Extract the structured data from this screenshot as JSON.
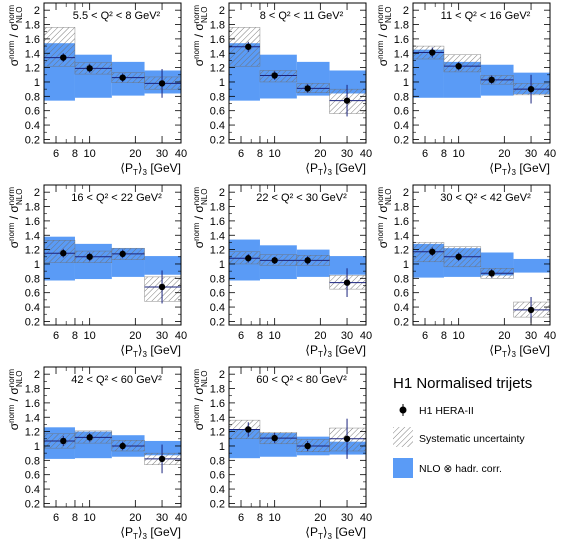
{
  "figure": {
    "y_axis_label": "σ norm / σ norm NLO",
    "legend": {
      "title": "H1 Normalised trijets",
      "entries": [
        {
          "label": "H1 HERA-II",
          "kind": "data-point"
        },
        {
          "label": "Systematic uncertainty",
          "kind": "hatched-box"
        },
        {
          "label": "NLO ⊗ hadr. corr.",
          "kind": "filled-box"
        }
      ]
    },
    "colors": {
      "nlo_band": "#5a9bf6",
      "hatch": "#6f6f6f",
      "data": "#000000",
      "error_bar": "#1a237e"
    }
  },
  "chart_data": [
    {
      "type": "scatter",
      "panel": "5.5 < Q² < 8 GeV²",
      "x_label": "⟨P_T⟩_3 [GeV]",
      "x_scale": "log",
      "xlim": [
        5,
        40
      ],
      "ylim": [
        0.15,
        2.1
      ],
      "x_ticks": [
        6,
        8,
        10,
        20,
        30,
        40
      ],
      "y_ticks": [
        0.2,
        0.4,
        0.6,
        0.8,
        1,
        1.2,
        1.4,
        1.6,
        1.8,
        2
      ],
      "bins": [
        {
          "lo": 5,
          "hi": 8,
          "x": 6.7,
          "y": 1.34,
          "stat": 0.06,
          "sys_lo": 1.22,
          "sys_hi": 1.76,
          "nlo_lo": 0.74,
          "nlo_hi": 1.54
        },
        {
          "lo": 8,
          "hi": 14,
          "x": 10.0,
          "y": 1.19,
          "stat": 0.06,
          "sys_lo": 1.11,
          "sys_hi": 1.27,
          "nlo_lo": 0.78,
          "nlo_hi": 1.38
        },
        {
          "lo": 14,
          "hi": 23,
          "x": 16.5,
          "y": 1.06,
          "stat": 0.06,
          "sys_lo": 0.99,
          "sys_hi": 1.13,
          "nlo_lo": 0.81,
          "nlo_hi": 1.28
        },
        {
          "lo": 23,
          "hi": 40,
          "x": 30.0,
          "y": 0.98,
          "stat": 0.2,
          "sys_lo": 0.9,
          "sys_hi": 1.07,
          "nlo_lo": 0.84,
          "nlo_hi": 1.16
        }
      ]
    },
    {
      "type": "scatter",
      "panel": "8 < Q² < 11 GeV²",
      "x_label": "⟨P_T⟩_3 [GeV]",
      "x_scale": "log",
      "xlim": [
        5,
        40
      ],
      "ylim": [
        0.15,
        2.1
      ],
      "x_ticks": [
        6,
        8,
        10,
        20,
        30,
        40
      ],
      "y_ticks": [
        0.2,
        0.4,
        0.6,
        0.8,
        1,
        1.2,
        1.4,
        1.6,
        1.8,
        2
      ],
      "bins": [
        {
          "lo": 5,
          "hi": 8,
          "x": 6.7,
          "y": 1.49,
          "stat": 0.07,
          "sys_lo": 1.22,
          "sys_hi": 1.76,
          "nlo_lo": 0.74,
          "nlo_hi": 1.54
        },
        {
          "lo": 8,
          "hi": 14,
          "x": 10.0,
          "y": 1.09,
          "stat": 0.06,
          "sys_lo": 1.0,
          "sys_hi": 1.16,
          "nlo_lo": 0.77,
          "nlo_hi": 1.38
        },
        {
          "lo": 14,
          "hi": 23,
          "x": 16.5,
          "y": 0.91,
          "stat": 0.06,
          "sys_lo": 0.85,
          "sys_hi": 0.98,
          "nlo_lo": 0.81,
          "nlo_hi": 1.28
        },
        {
          "lo": 23,
          "hi": 40,
          "x": 30.0,
          "y": 0.74,
          "stat": 0.22,
          "sys_lo": 0.56,
          "sys_hi": 0.9,
          "nlo_lo": 0.84,
          "nlo_hi": 1.16
        }
      ]
    },
    {
      "type": "scatter",
      "panel": "11 < Q² < 16 GeV²",
      "x_label": "⟨P_T⟩_3 [GeV]",
      "x_scale": "log",
      "xlim": [
        5,
        40
      ],
      "ylim": [
        0.15,
        2.1
      ],
      "x_ticks": [
        6,
        8,
        10,
        20,
        30,
        40
      ],
      "y_ticks": [
        0.2,
        0.4,
        0.6,
        0.8,
        1,
        1.2,
        1.4,
        1.6,
        1.8,
        2
      ],
      "bins": [
        {
          "lo": 5,
          "hi": 8,
          "x": 6.7,
          "y": 1.41,
          "stat": 0.07,
          "sys_lo": 1.32,
          "sys_hi": 1.5,
          "nlo_lo": 0.78,
          "nlo_hi": 1.45
        },
        {
          "lo": 8,
          "hi": 14,
          "x": 10.0,
          "y": 1.22,
          "stat": 0.06,
          "sys_lo": 1.14,
          "sys_hi": 1.38,
          "nlo_lo": 0.78,
          "nlo_hi": 1.28
        },
        {
          "lo": 14,
          "hi": 23,
          "x": 16.5,
          "y": 1.03,
          "stat": 0.06,
          "sys_lo": 0.97,
          "sys_hi": 1.09,
          "nlo_lo": 0.81,
          "nlo_hi": 1.24
        },
        {
          "lo": 23,
          "hi": 40,
          "x": 30.0,
          "y": 0.9,
          "stat": 0.2,
          "sys_lo": 0.82,
          "sys_hi": 0.98,
          "nlo_lo": 0.83,
          "nlo_hi": 1.13
        }
      ]
    },
    {
      "type": "scatter",
      "panel": "16 < Q² < 22 GeV²",
      "x_label": "⟨P_T⟩_3 [GeV]",
      "x_scale": "log",
      "xlim": [
        5,
        40
      ],
      "ylim": [
        0.15,
        2.1
      ],
      "x_ticks": [
        6,
        8,
        10,
        20,
        30,
        40
      ],
      "y_ticks": [
        0.2,
        0.4,
        0.6,
        0.8,
        1,
        1.2,
        1.4,
        1.6,
        1.8,
        2
      ],
      "bins": [
        {
          "lo": 5,
          "hi": 8,
          "x": 6.7,
          "y": 1.15,
          "stat": 0.06,
          "sys_lo": 1.02,
          "sys_hi": 1.33,
          "nlo_lo": 0.77,
          "nlo_hi": 1.38
        },
        {
          "lo": 8,
          "hi": 14,
          "x": 10.0,
          "y": 1.1,
          "stat": 0.06,
          "sys_lo": 1.02,
          "sys_hi": 1.18,
          "nlo_lo": 0.79,
          "nlo_hi": 1.28
        },
        {
          "lo": 14,
          "hi": 23,
          "x": 16.5,
          "y": 1.14,
          "stat": 0.06,
          "sys_lo": 1.06,
          "sys_hi": 1.22,
          "nlo_lo": 0.82,
          "nlo_hi": 1.22
        },
        {
          "lo": 23,
          "hi": 40,
          "x": 30.0,
          "y": 0.68,
          "stat": 0.23,
          "sys_lo": 0.48,
          "sys_hi": 0.82,
          "nlo_lo": 0.85,
          "nlo_hi": 1.11
        }
      ]
    },
    {
      "type": "scatter",
      "panel": "22 < Q² < 30 GeV²",
      "x_label": "⟨P_T⟩_3 [GeV]",
      "x_scale": "log",
      "xlim": [
        5,
        40
      ],
      "ylim": [
        0.15,
        2.1
      ],
      "x_ticks": [
        6,
        8,
        10,
        20,
        30,
        40
      ],
      "y_ticks": [
        0.2,
        0.4,
        0.6,
        0.8,
        1,
        1.2,
        1.4,
        1.6,
        1.8,
        2
      ],
      "bins": [
        {
          "lo": 5,
          "hi": 8,
          "x": 6.7,
          "y": 1.08,
          "stat": 0.06,
          "sys_lo": 1.0,
          "sys_hi": 1.17,
          "nlo_lo": 0.77,
          "nlo_hi": 1.34
        },
        {
          "lo": 8,
          "hi": 14,
          "x": 10.0,
          "y": 1.05,
          "stat": 0.05,
          "sys_lo": 0.98,
          "sys_hi": 1.13,
          "nlo_lo": 0.79,
          "nlo_hi": 1.26
        },
        {
          "lo": 14,
          "hi": 23,
          "x": 16.5,
          "y": 1.05,
          "stat": 0.06,
          "sys_lo": 0.98,
          "sys_hi": 1.12,
          "nlo_lo": 0.82,
          "nlo_hi": 1.2
        },
        {
          "lo": 23,
          "hi": 40,
          "x": 30.0,
          "y": 0.74,
          "stat": 0.2,
          "sys_lo": 0.65,
          "sys_hi": 0.84,
          "nlo_lo": 0.85,
          "nlo_hi": 1.11
        }
      ]
    },
    {
      "type": "scatter",
      "panel": "30 < Q² < 42 GeV²",
      "x_label": "⟨P_T⟩_3 [GeV]",
      "x_scale": "log",
      "xlim": [
        5,
        40
      ],
      "ylim": [
        0.15,
        2.1
      ],
      "x_ticks": [
        6,
        8,
        10,
        20,
        30,
        40
      ],
      "y_ticks": [
        0.2,
        0.4,
        0.6,
        0.8,
        1,
        1.2,
        1.4,
        1.6,
        1.8,
        2
      ],
      "bins": [
        {
          "lo": 5,
          "hi": 8,
          "x": 6.7,
          "y": 1.17,
          "stat": 0.06,
          "sys_lo": 1.03,
          "sys_hi": 1.3,
          "nlo_lo": 0.81,
          "nlo_hi": 1.28
        },
        {
          "lo": 8,
          "hi": 14,
          "x": 10.0,
          "y": 1.1,
          "stat": 0.06,
          "sys_lo": 0.96,
          "sys_hi": 1.24,
          "nlo_lo": 0.82,
          "nlo_hi": 1.22
        },
        {
          "lo": 14,
          "hi": 23,
          "x": 16.5,
          "y": 0.87,
          "stat": 0.06,
          "sys_lo": 0.8,
          "sys_hi": 0.94,
          "nlo_lo": 0.84,
          "nlo_hi": 1.16
        },
        {
          "lo": 23,
          "hi": 40,
          "x": 30.0,
          "y": 0.36,
          "stat": 0.18,
          "sys_lo": 0.26,
          "sys_hi": 0.47,
          "nlo_lo": 0.88,
          "nlo_hi": 1.07
        }
      ]
    },
    {
      "type": "scatter",
      "panel": "42 < Q² < 60 GeV²",
      "x_label": "⟨P_T⟩_3 [GeV]",
      "x_scale": "log",
      "xlim": [
        5,
        40
      ],
      "ylim": [
        0.15,
        2.1
      ],
      "x_ticks": [
        6,
        8,
        10,
        20,
        30,
        40
      ],
      "y_ticks": [
        0.2,
        0.4,
        0.6,
        0.8,
        1,
        1.2,
        1.4,
        1.6,
        1.8,
        2
      ],
      "bins": [
        {
          "lo": 5,
          "hi": 8,
          "x": 6.7,
          "y": 1.07,
          "stat": 0.07,
          "sys_lo": 0.97,
          "sys_hi": 1.17,
          "nlo_lo": 0.82,
          "nlo_hi": 1.26
        },
        {
          "lo": 8,
          "hi": 14,
          "x": 10.0,
          "y": 1.12,
          "stat": 0.06,
          "sys_lo": 1.04,
          "sys_hi": 1.21,
          "nlo_lo": 0.83,
          "nlo_hi": 1.2
        },
        {
          "lo": 14,
          "hi": 23,
          "x": 16.5,
          "y": 1.0,
          "stat": 0.06,
          "sys_lo": 0.93,
          "sys_hi": 1.08,
          "nlo_lo": 0.85,
          "nlo_hi": 1.15
        },
        {
          "lo": 23,
          "hi": 40,
          "x": 30.0,
          "y": 0.82,
          "stat": 0.2,
          "sys_lo": 0.74,
          "sys_hi": 0.9,
          "nlo_lo": 0.87,
          "nlo_hi": 1.07
        }
      ]
    },
    {
      "type": "scatter",
      "panel": "60 < Q² < 80 GeV²",
      "x_label": "⟨P_T⟩_3 [GeV]",
      "x_scale": "log",
      "xlim": [
        5,
        40
      ],
      "ylim": [
        0.15,
        2.1
      ],
      "x_ticks": [
        6,
        8,
        10,
        20,
        30,
        40
      ],
      "y_ticks": [
        0.2,
        0.4,
        0.6,
        0.8,
        1,
        1.2,
        1.4,
        1.6,
        1.8,
        2
      ],
      "bins": [
        {
          "lo": 5,
          "hi": 8,
          "x": 6.7,
          "y": 1.23,
          "stat": 0.1,
          "sys_lo": 1.1,
          "sys_hi": 1.36,
          "nlo_lo": 0.83,
          "nlo_hi": 1.23
        },
        {
          "lo": 8,
          "hi": 14,
          "x": 10.0,
          "y": 1.11,
          "stat": 0.07,
          "sys_lo": 1.03,
          "sys_hi": 1.19,
          "nlo_lo": 0.85,
          "nlo_hi": 1.18
        },
        {
          "lo": 14,
          "hi": 23,
          "x": 16.5,
          "y": 1.0,
          "stat": 0.07,
          "sys_lo": 0.92,
          "sys_hi": 1.09,
          "nlo_lo": 0.87,
          "nlo_hi": 1.13
        },
        {
          "lo": 23,
          "hi": 40,
          "x": 30.0,
          "y": 1.1,
          "stat": 0.28,
          "sys_lo": 0.93,
          "sys_hi": 1.25,
          "nlo_lo": 0.88,
          "nlo_hi": 1.06
        }
      ]
    }
  ]
}
